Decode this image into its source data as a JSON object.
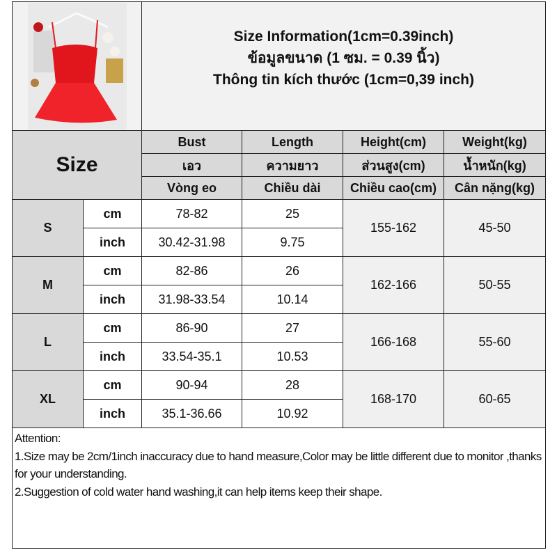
{
  "header": {
    "title_en": "Size Information(1cm=0.39inch)",
    "title_th": "ข้อมูลขนาด (1 ซม. = 0.39 นิ้ว)",
    "title_vi": "Thông tin kích thước (1cm=0,39 inch)"
  },
  "size_label": "Size",
  "columns": [
    {
      "en": "Bust",
      "th": "เอว",
      "vi": "Vòng eo"
    },
    {
      "en": "Length",
      "th": "ความยาว",
      "vi": "Chiều dài"
    },
    {
      "en": "Height(cm)",
      "th": "ส่วนสูง(cm)",
      "vi": "Chiều cao(cm)"
    },
    {
      "en": "Weight(kg)",
      "th": "น้ำหนัก(kg)",
      "vi": "Cân nặng(kg)"
    }
  ],
  "units": {
    "cm": "cm",
    "inch": "inch"
  },
  "rows": [
    {
      "size": "S",
      "cm": {
        "bust": "78-82",
        "length": "25"
      },
      "inch": {
        "bust": "30.42-31.98",
        "length": "9.75"
      },
      "height": "155-162",
      "weight": "45-50"
    },
    {
      "size": "M",
      "cm": {
        "bust": "82-86",
        "length": "26"
      },
      "inch": {
        "bust": "31.98-33.54",
        "length": "10.14"
      },
      "height": "162-166",
      "weight": "50-55"
    },
    {
      "size": "L",
      "cm": {
        "bust": "86-90",
        "length": "27"
      },
      "inch": {
        "bust": "33.54-35.1",
        "length": "10.53"
      },
      "height": "166-168",
      "weight": "55-60"
    },
    {
      "size": "XL",
      "cm": {
        "bust": "90-94",
        "length": "28"
      },
      "inch": {
        "bust": "35.1-36.66",
        "length": "10.92"
      },
      "height": "168-170",
      "weight": "60-65"
    }
  ],
  "attention": {
    "heading": "Attention:",
    "note1": "1.Size may be 2cm/1inch inaccuracy due to hand measure,Color may be little different due to monitor ,thanks for your understanding.",
    "note2": "2.Suggestion of cold water hand washing,it can help items keep their shape."
  }
}
